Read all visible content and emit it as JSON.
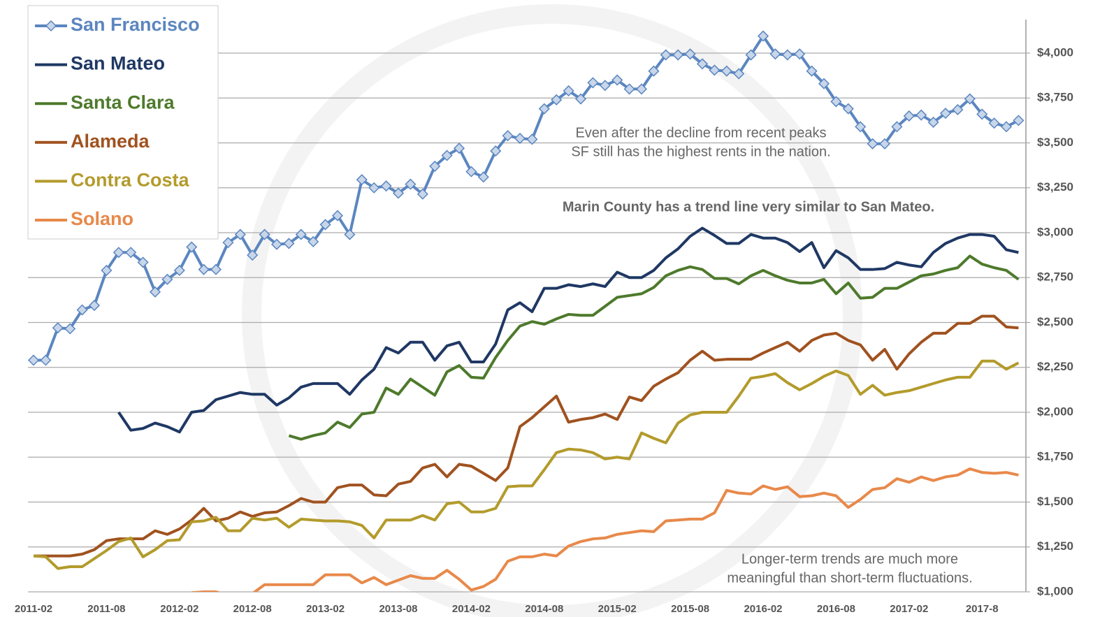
{
  "chart_data": {
    "type": "line",
    "categories": [
      "2011-02",
      null,
      null,
      null,
      null,
      null,
      "2011-08",
      null,
      null,
      null,
      null,
      null,
      "2012-02",
      null,
      null,
      null,
      null,
      null,
      "2012-08",
      null,
      null,
      null,
      null,
      null,
      "2013-02",
      null,
      null,
      null,
      null,
      null,
      "2013-08",
      null,
      null,
      null,
      null,
      null,
      "2014-02",
      null,
      null,
      null,
      null,
      null,
      "2014-08",
      null,
      null,
      null,
      null,
      null,
      "2015-02",
      null,
      null,
      null,
      null,
      null,
      "2015-08",
      null,
      null,
      null,
      null,
      null,
      "2016-02",
      null,
      null,
      null,
      null,
      null,
      "2016-08",
      null,
      null,
      null,
      null,
      null,
      "2017-02",
      null,
      null,
      null,
      null,
      null,
      "2017-8",
      null,
      null,
      null
    ],
    "series": [
      {
        "name": "San Francisco",
        "color": "#5b86c0",
        "marker": "diamond",
        "values": [
          2290,
          2290,
          2470,
          2465,
          2570,
          2595,
          2790,
          2890,
          2890,
          2835,
          2670,
          2740,
          2790,
          2920,
          2795,
          2795,
          2945,
          2990,
          2875,
          2990,
          2935,
          2940,
          2990,
          2950,
          3045,
          3095,
          2990,
          3295,
          3250,
          3260,
          3220,
          3270,
          3215,
          3370,
          3430,
          3470,
          3340,
          3310,
          3455,
          3540,
          3525,
          3520,
          3690,
          3740,
          3790,
          3745,
          3835,
          3820,
          3850,
          3800,
          3800,
          3900,
          3990,
          3990,
          3995,
          3940,
          3905,
          3900,
          3885,
          3990,
          4095,
          3995,
          3990,
          3995,
          3900,
          3830,
          3730,
          3690,
          3590,
          3495,
          3495,
          3590,
          3650,
          3655,
          3615,
          3665,
          3685,
          3745,
          3660,
          3610,
          3590,
          3625
        ]
      },
      {
        "name": "San Mateo",
        "color": "#1f3864",
        "values": [
          null,
          null,
          null,
          null,
          null,
          null,
          null,
          2000,
          1900,
          1910,
          1940,
          1920,
          1890,
          2000,
          2010,
          2070,
          2090,
          2110,
          2100,
          2100,
          2040,
          2080,
          2140,
          2160,
          2160,
          2160,
          2100,
          2180,
          2240,
          2360,
          2330,
          2390,
          2390,
          2290,
          2370,
          2390,
          2280,
          2280,
          2380,
          2570,
          2610,
          2560,
          2690,
          2690,
          2710,
          2700,
          2715,
          2700,
          2780,
          2750,
          2750,
          2790,
          2860,
          2910,
          2980,
          3025,
          2985,
          2940,
          2940,
          2990,
          2970,
          2970,
          2945,
          2895,
          2945,
          2805,
          2900,
          2860,
          2795,
          2795,
          2800,
          2835,
          2820,
          2810,
          2890,
          2940,
          2970,
          2990,
          2990,
          2980,
          2905,
          2890
        ]
      },
      {
        "name": "Santa Clara",
        "color": "#4e7a2c",
        "values": [
          null,
          null,
          null,
          null,
          null,
          null,
          null,
          null,
          null,
          null,
          null,
          null,
          null,
          null,
          null,
          null,
          null,
          null,
          null,
          null,
          null,
          1870,
          1850,
          1870,
          1885,
          1945,
          1915,
          1990,
          2000,
          2135,
          2100,
          2185,
          2140,
          2095,
          2225,
          2260,
          2195,
          2190,
          2305,
          2400,
          2480,
          2505,
          2490,
          2520,
          2545,
          2540,
          2540,
          2590,
          2640,
          2650,
          2660,
          2695,
          2760,
          2790,
          2810,
          2795,
          2745,
          2745,
          2715,
          2760,
          2790,
          2760,
          2735,
          2720,
          2720,
          2740,
          2660,
          2720,
          2635,
          2640,
          2690,
          2690,
          2725,
          2760,
          2770,
          2790,
          2805,
          2870,
          2825,
          2805,
          2790,
          2740
        ]
      },
      {
        "name": "Alameda",
        "color": "#a0521f",
        "values": [
          1200,
          1200,
          1200,
          1200,
          1210,
          1235,
          1285,
          1295,
          1295,
          1295,
          1340,
          1320,
          1350,
          1400,
          1465,
          1395,
          1410,
          1445,
          1420,
          1440,
          1445,
          1480,
          1520,
          1500,
          1500,
          1580,
          1595,
          1595,
          1540,
          1535,
          1600,
          1615,
          1690,
          1710,
          1640,
          1710,
          1700,
          1660,
          1620,
          1690,
          1920,
          1970,
          2030,
          2090,
          1945,
          1960,
          1970,
          1990,
          1960,
          2085,
          2065,
          2145,
          2185,
          2220,
          2290,
          2340,
          2290,
          2295,
          2295,
          2295,
          2330,
          2360,
          2390,
          2340,
          2400,
          2430,
          2440,
          2400,
          2375,
          2290,
          2350,
          2240,
          2325,
          2390,
          2440,
          2440,
          2495,
          2495,
          2535,
          2535,
          2475,
          2470
        ]
      },
      {
        "name": "Contra Costa",
        "color": "#b39b2c",
        "values": [
          1200,
          1195,
          1130,
          1140,
          1140,
          1185,
          1230,
          1280,
          1300,
          1195,
          1235,
          1285,
          1290,
          1390,
          1395,
          1415,
          1340,
          1340,
          1410,
          1400,
          1410,
          1360,
          1405,
          1400,
          1395,
          1395,
          1390,
          1370,
          1300,
          1400,
          1400,
          1400,
          1425,
          1400,
          1490,
          1500,
          1445,
          1445,
          1465,
          1585,
          1590,
          1590,
          1680,
          1775,
          1795,
          1790,
          1775,
          1740,
          1750,
          1740,
          1885,
          1855,
          1830,
          1940,
          1985,
          2000,
          2000,
          2000,
          2090,
          2190,
          2200,
          2215,
          2165,
          2125,
          2160,
          2200,
          2230,
          2205,
          2100,
          2150,
          2095,
          2110,
          2120,
          2140,
          2160,
          2180,
          2195,
          2195,
          2285,
          2285,
          2240,
          2275
        ]
      },
      {
        "name": "Solano",
        "color": "#e8894a",
        "values": [
          null,
          null,
          null,
          null,
          null,
          null,
          null,
          null,
          null,
          null,
          null,
          null,
          null,
          995,
          1000,
          1000,
          980,
          975,
          990,
          1040,
          1040,
          1040,
          1040,
          1040,
          1095,
          1095,
          1095,
          1050,
          1080,
          1040,
          1065,
          1090,
          1075,
          1075,
          1120,
          1070,
          1010,
          1030,
          1070,
          1170,
          1195,
          1195,
          1210,
          1200,
          1255,
          1280,
          1295,
          1300,
          1320,
          1330,
          1340,
          1335,
          1395,
          1400,
          1405,
          1405,
          1440,
          1565,
          1550,
          1545,
          1590,
          1570,
          1585,
          1530,
          1535,
          1550,
          1535,
          1470,
          1515,
          1570,
          1580,
          1630,
          1610,
          1640,
          1620,
          1640,
          1650,
          1685,
          1665,
          1660,
          1665,
          1650
        ]
      }
    ],
    "ylim": [
      1000,
      4100
    ],
    "yticks": [
      {
        "value": 1000,
        "label": "$1,000"
      },
      {
        "value": 1250,
        "label": "$1,250"
      },
      {
        "value": 1500,
        "label": "$1,500"
      },
      {
        "value": 1750,
        "label": "$1,750"
      },
      {
        "value": 2000,
        "label": "$2,000"
      },
      {
        "value": 2250,
        "label": "$2,250"
      },
      {
        "value": 2500,
        "label": "$2,500"
      },
      {
        "value": 2750,
        "label": "$2,750"
      },
      {
        "value": 3000,
        "label": "$3,000"
      },
      {
        "value": 3250,
        "label": "$3,250"
      },
      {
        "value": 3500,
        "label": "$3,500"
      },
      {
        "value": 3750,
        "label": "$3,750"
      },
      {
        "value": 4000,
        "label": "$4,000"
      }
    ],
    "grid": true,
    "legend": "top-left",
    "annotations": [
      "Even after the decline from recent peaks",
      "SF still has the highest rents in the nation.",
      "Marin County has a trend line very similar to San Mateo.",
      "Longer-term trends are much more",
      "meaningful than short-term fluctuations."
    ]
  }
}
